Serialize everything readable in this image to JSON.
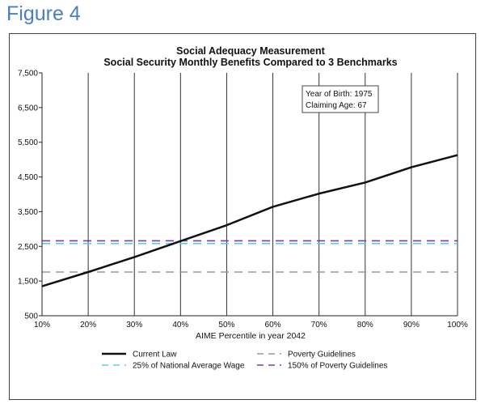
{
  "figure_label": "Figure 4",
  "chart_data": {
    "type": "line",
    "title": "Social Adequacy Measurement",
    "subtitle": "Social Security Monthly Benefits Compared to 3 Benchmarks",
    "xlabel": "AIME Percentile in year 2042",
    "ylabel": "",
    "x": [
      10,
      20,
      30,
      40,
      50,
      60,
      70,
      80,
      90,
      100
    ],
    "x_tick_labels": [
      "10%",
      "20%",
      "30%",
      "40%",
      "50%",
      "60%",
      "70%",
      "80%",
      "90%",
      "100%"
    ],
    "ylim": [
      500,
      7500
    ],
    "y_ticks": [
      500,
      1500,
      2500,
      3500,
      4500,
      5500,
      6500,
      7500
    ],
    "y_tick_labels": [
      "500",
      "1,500",
      "2,500",
      "3,500",
      "4,500",
      "5,500",
      "6,500",
      "7,500"
    ],
    "grid": "vertical",
    "legend_position": "bottom",
    "series": [
      {
        "name": "Current Law",
        "color": "#111111",
        "style": "solid",
        "values": [
          1350,
          1760,
          2190,
          2650,
          3110,
          3640,
          4020,
          4340,
          4780,
          5130
        ]
      },
      {
        "name": "Poverty Guidelines",
        "color": "#9a9a9a",
        "style": "dashed",
        "values": [
          1760,
          1760,
          1760,
          1760,
          1760,
          1760,
          1760,
          1760,
          1760,
          1760
        ]
      },
      {
        "name": "25% of National Average Wage",
        "color": "#5fcde0",
        "style": "dashed",
        "values": [
          2580,
          2580,
          2580,
          2580,
          2580,
          2580,
          2580,
          2580,
          2580,
          2580
        ]
      },
      {
        "name": "150% of Poverty Guidelines",
        "color": "#7a3f9a",
        "style": "dashed",
        "values": [
          2660,
          2660,
          2660,
          2660,
          2660,
          2660,
          2660,
          2660,
          2660,
          2660
        ]
      }
    ],
    "annotation": {
      "line1": "Year of Birth: 1975",
      "line2": "Claiming Age: 67",
      "anchor": "top-right"
    }
  }
}
